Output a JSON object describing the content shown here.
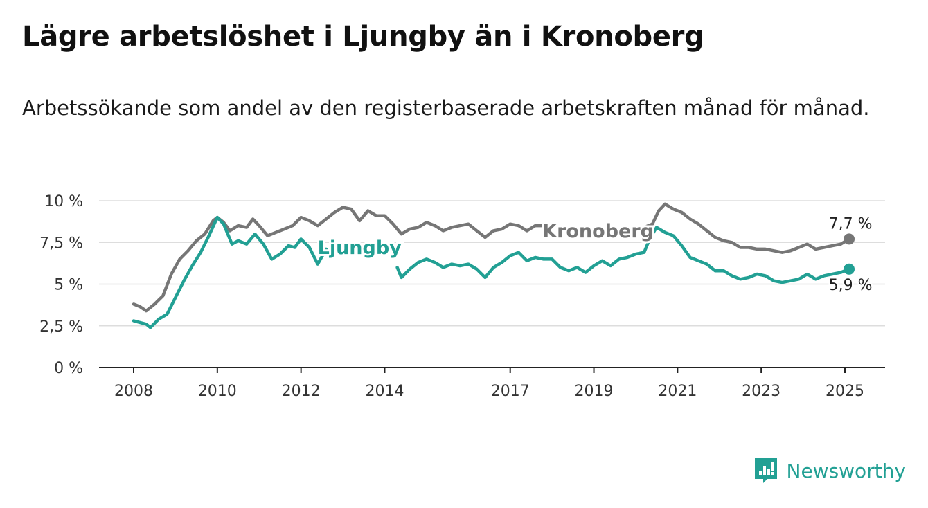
{
  "title": "Lägre arbetslöshet i Ljungby än i Kronoberg",
  "subtitle": "Arbetssökande som andel av den registerbaserade arbetskraften månad för månad.",
  "brand": {
    "name": "Newsworthy",
    "color": "#22a094"
  },
  "chart_data": {
    "type": "line",
    "x_unit": "year (decimal)",
    "ylim": [
      0,
      10
    ],
    "xlim": [
      2007.6,
      2025.9
    ],
    "grid": true,
    "y_ticks": [
      {
        "value": 0,
        "label": "0 %"
      },
      {
        "value": 2.5,
        "label": "2,5 %"
      },
      {
        "value": 5,
        "label": "5 %"
      },
      {
        "value": 7.5,
        "label": "7,5 %"
      },
      {
        "value": 10,
        "label": "10 %"
      }
    ],
    "x_ticks": [
      {
        "value": 2008,
        "label": "2008"
      },
      {
        "value": 2010,
        "label": "2010"
      },
      {
        "value": 2012,
        "label": "2012"
      },
      {
        "value": 2014,
        "label": "2014"
      },
      {
        "value": 2017,
        "label": "2017"
      },
      {
        "value": 2019,
        "label": "2019"
      },
      {
        "value": 2021,
        "label": "2021"
      },
      {
        "value": 2023,
        "label": "2023"
      },
      {
        "value": 2025,
        "label": "2025"
      }
    ],
    "series": [
      {
        "name": "Kronoberg",
        "color": "#767676",
        "end_label": "7,7 %",
        "points": [
          [
            2008.0,
            3.8
          ],
          [
            2008.15,
            3.65
          ],
          [
            2008.3,
            3.4
          ],
          [
            2008.5,
            3.8
          ],
          [
            2008.7,
            4.3
          ],
          [
            2008.9,
            5.6
          ],
          [
            2009.1,
            6.5
          ],
          [
            2009.3,
            7.0
          ],
          [
            2009.5,
            7.6
          ],
          [
            2009.7,
            8.0
          ],
          [
            2009.9,
            8.8
          ],
          [
            2010.0,
            9.0
          ],
          [
            2010.15,
            8.7
          ],
          [
            2010.3,
            8.2
          ],
          [
            2010.5,
            8.5
          ],
          [
            2010.7,
            8.4
          ],
          [
            2010.85,
            8.9
          ],
          [
            2011.0,
            8.5
          ],
          [
            2011.2,
            7.9
          ],
          [
            2011.4,
            8.1
          ],
          [
            2011.6,
            8.3
          ],
          [
            2011.8,
            8.5
          ],
          [
            2012.0,
            9.0
          ],
          [
            2012.2,
            8.8
          ],
          [
            2012.4,
            8.5
          ],
          [
            2012.6,
            8.9
          ],
          [
            2012.8,
            9.3
          ],
          [
            2013.0,
            9.6
          ],
          [
            2013.2,
            9.5
          ],
          [
            2013.4,
            8.8
          ],
          [
            2013.6,
            9.4
          ],
          [
            2013.8,
            9.1
          ],
          [
            2014.0,
            9.1
          ],
          [
            2014.2,
            8.6
          ],
          [
            2014.4,
            8.0
          ],
          [
            2014.6,
            8.3
          ],
          [
            2014.8,
            8.4
          ],
          [
            2015.0,
            8.7
          ],
          [
            2015.2,
            8.5
          ],
          [
            2015.4,
            8.2
          ],
          [
            2015.6,
            8.4
          ],
          [
            2015.8,
            8.5
          ],
          [
            2016.0,
            8.6
          ],
          [
            2016.2,
            8.2
          ],
          [
            2016.4,
            7.8
          ],
          [
            2016.6,
            8.2
          ],
          [
            2016.8,
            8.3
          ],
          [
            2017.0,
            8.6
          ],
          [
            2017.2,
            8.5
          ],
          [
            2017.4,
            8.2
          ],
          [
            2017.6,
            8.5
          ],
          [
            2017.8,
            8.5
          ],
          [
            2018.0,
            null
          ],
          [
            2020.2,
            8.4
          ],
          [
            2020.4,
            8.6
          ],
          [
            2020.55,
            9.4
          ],
          [
            2020.7,
            9.8
          ],
          [
            2020.9,
            9.5
          ],
          [
            2021.1,
            9.3
          ],
          [
            2021.3,
            8.9
          ],
          [
            2021.5,
            8.6
          ],
          [
            2021.7,
            8.2
          ],
          [
            2021.9,
            7.8
          ],
          [
            2022.1,
            7.6
          ],
          [
            2022.3,
            7.5
          ],
          [
            2022.5,
            7.2
          ],
          [
            2022.7,
            7.2
          ],
          [
            2022.9,
            7.1
          ],
          [
            2023.1,
            7.1
          ],
          [
            2023.3,
            7.0
          ],
          [
            2023.5,
            6.9
          ],
          [
            2023.7,
            7.0
          ],
          [
            2023.9,
            7.2
          ],
          [
            2024.1,
            7.4
          ],
          [
            2024.3,
            7.1
          ],
          [
            2024.5,
            7.2
          ],
          [
            2024.7,
            7.3
          ],
          [
            2024.9,
            7.4
          ],
          [
            2025.1,
            7.7
          ]
        ]
      },
      {
        "name": "Ljungby",
        "color": "#22a094",
        "end_label": "5,9 %",
        "points": [
          [
            2008.0,
            2.8
          ],
          [
            2008.15,
            2.7
          ],
          [
            2008.3,
            2.6
          ],
          [
            2008.4,
            2.4
          ],
          [
            2008.6,
            2.9
          ],
          [
            2008.8,
            3.2
          ],
          [
            2009.0,
            4.2
          ],
          [
            2009.2,
            5.2
          ],
          [
            2009.4,
            6.1
          ],
          [
            2009.6,
            6.9
          ],
          [
            2009.8,
            7.9
          ],
          [
            2010.0,
            9.0
          ],
          [
            2010.15,
            8.6
          ],
          [
            2010.35,
            7.4
          ],
          [
            2010.5,
            7.6
          ],
          [
            2010.7,
            7.4
          ],
          [
            2010.9,
            8.0
          ],
          [
            2011.1,
            7.4
          ],
          [
            2011.3,
            6.5
          ],
          [
            2011.5,
            6.8
          ],
          [
            2011.7,
            7.3
          ],
          [
            2011.85,
            7.2
          ],
          [
            2012.0,
            7.7
          ],
          [
            2012.2,
            7.2
          ],
          [
            2012.4,
            6.2
          ],
          [
            2012.6,
            7.1
          ],
          [
            2012.75,
            null
          ],
          [
            2014.3,
            6.0
          ],
          [
            2014.4,
            5.4
          ],
          [
            2014.6,
            5.9
          ],
          [
            2014.8,
            6.3
          ],
          [
            2015.0,
            6.5
          ],
          [
            2015.2,
            6.3
          ],
          [
            2015.4,
            6.0
          ],
          [
            2015.6,
            6.2
          ],
          [
            2015.8,
            6.1
          ],
          [
            2016.0,
            6.2
          ],
          [
            2016.2,
            5.9
          ],
          [
            2016.4,
            5.4
          ],
          [
            2016.6,
            6.0
          ],
          [
            2016.8,
            6.3
          ],
          [
            2017.0,
            6.7
          ],
          [
            2017.2,
            6.9
          ],
          [
            2017.4,
            6.4
          ],
          [
            2017.6,
            6.6
          ],
          [
            2017.8,
            6.5
          ],
          [
            2018.0,
            6.5
          ],
          [
            2018.2,
            6.0
          ],
          [
            2018.4,
            5.8
          ],
          [
            2018.6,
            6.0
          ],
          [
            2018.8,
            5.7
          ],
          [
            2019.0,
            6.1
          ],
          [
            2019.2,
            6.4
          ],
          [
            2019.4,
            6.1
          ],
          [
            2019.6,
            6.5
          ],
          [
            2019.8,
            6.6
          ],
          [
            2020.0,
            6.8
          ],
          [
            2020.2,
            6.9
          ],
          [
            2020.35,
            7.8
          ],
          [
            2020.5,
            8.4
          ],
          [
            2020.7,
            8.1
          ],
          [
            2020.9,
            7.9
          ],
          [
            2021.1,
            7.3
          ],
          [
            2021.3,
            6.6
          ],
          [
            2021.5,
            6.4
          ],
          [
            2021.7,
            6.2
          ],
          [
            2021.9,
            5.8
          ],
          [
            2022.1,
            5.8
          ],
          [
            2022.3,
            5.5
          ],
          [
            2022.5,
            5.3
          ],
          [
            2022.7,
            5.4
          ],
          [
            2022.9,
            5.6
          ],
          [
            2023.1,
            5.5
          ],
          [
            2023.3,
            5.2
          ],
          [
            2023.5,
            5.1
          ],
          [
            2023.7,
            5.2
          ],
          [
            2023.9,
            5.3
          ],
          [
            2024.1,
            5.6
          ],
          [
            2024.3,
            5.3
          ],
          [
            2024.5,
            5.5
          ],
          [
            2024.7,
            5.6
          ],
          [
            2024.9,
            5.7
          ],
          [
            2025.1,
            5.9
          ]
        ]
      }
    ],
    "series_labels": [
      {
        "series": "Kronoberg",
        "text": "Kronoberg",
        "anchor": [
          2019.1,
          7.8
        ]
      },
      {
        "series": "Ljungby",
        "text": "Ljungby",
        "anchor": [
          2013.4,
          6.8
        ]
      }
    ]
  }
}
